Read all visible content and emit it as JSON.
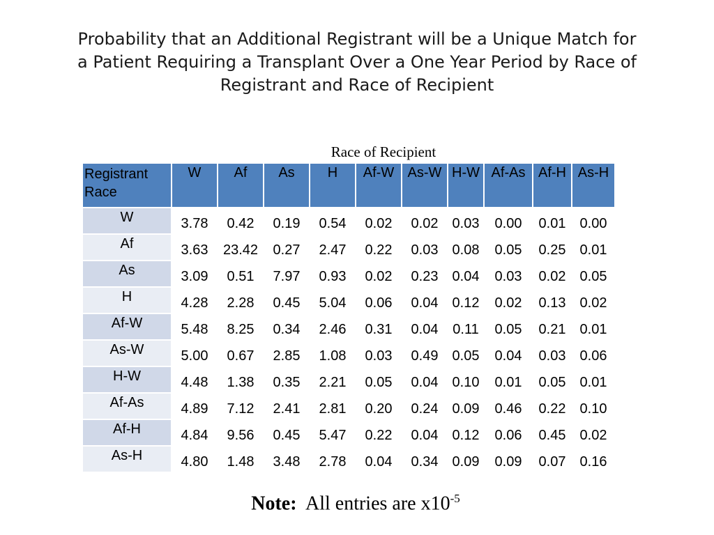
{
  "title_lines": [
    "Probability that an Additional Registrant will be a Unique Match for",
    "a Patient Requiring a Transplant Over a One Year Period by Race of",
    "Registrant and Race of Recipient"
  ],
  "caption": "Race of Recipient",
  "table": {
    "corner_line1": "Registrant",
    "corner_line2": "Race",
    "columns": [
      "W",
      "Af",
      "As",
      "H",
      "Af-W",
      "As-W",
      "H-W",
      "Af-As",
      "Af-H",
      "As-H"
    ],
    "rows": [
      {
        "race": "W",
        "values": [
          "3.78",
          "0.42",
          "0.19",
          "0.54",
          "0.02",
          "0.02",
          "0.03",
          "0.00",
          "0.01",
          "0.00"
        ]
      },
      {
        "race": "Af",
        "values": [
          "3.63",
          "23.42",
          "0.27",
          "2.47",
          "0.22",
          "0.03",
          "0.08",
          "0.05",
          "0.25",
          "0.01"
        ]
      },
      {
        "race": "As",
        "values": [
          "3.09",
          "0.51",
          "7.97",
          "0.93",
          "0.02",
          "0.23",
          "0.04",
          "0.03",
          "0.02",
          "0.05"
        ]
      },
      {
        "race": "H",
        "values": [
          "4.28",
          "2.28",
          "0.45",
          "5.04",
          "0.06",
          "0.04",
          "0.12",
          "0.02",
          "0.13",
          "0.02"
        ]
      },
      {
        "race": "Af-W",
        "values": [
          "5.48",
          "8.25",
          "0.34",
          "2.46",
          "0.31",
          "0.04",
          "0.11",
          "0.05",
          "0.21",
          "0.01"
        ]
      },
      {
        "race": "As-W",
        "values": [
          "5.00",
          "0.67",
          "2.85",
          "1.08",
          "0.03",
          "0.49",
          "0.05",
          "0.04",
          "0.03",
          "0.06"
        ]
      },
      {
        "race": "H-W",
        "values": [
          "4.48",
          "1.38",
          "0.35",
          "2.21",
          "0.05",
          "0.04",
          "0.10",
          "0.01",
          "0.05",
          "0.01"
        ]
      },
      {
        "race": "Af-As",
        "values": [
          "4.89",
          "7.12",
          "2.41",
          "2.81",
          "0.20",
          "0.24",
          "0.09",
          "0.46",
          "0.22",
          "0.10"
        ]
      },
      {
        "race": "Af-H",
        "values": [
          "4.84",
          "9.56",
          "0.45",
          "5.47",
          "0.22",
          "0.04",
          "0.12",
          "0.06",
          "0.45",
          "0.02"
        ]
      },
      {
        "race": "As-H",
        "values": [
          "4.80",
          "1.48",
          "3.48",
          "2.78",
          "0.04",
          "0.34",
          "0.09",
          "0.09",
          "0.07",
          "0.16"
        ]
      }
    ]
  },
  "note": {
    "label": "Note:",
    "text": "All entries are x10",
    "exponent": "-5"
  },
  "colors": {
    "header_blue": "#4f81bd",
    "band_dark": "#d0d8e8",
    "band_light": "#e9edf4"
  }
}
